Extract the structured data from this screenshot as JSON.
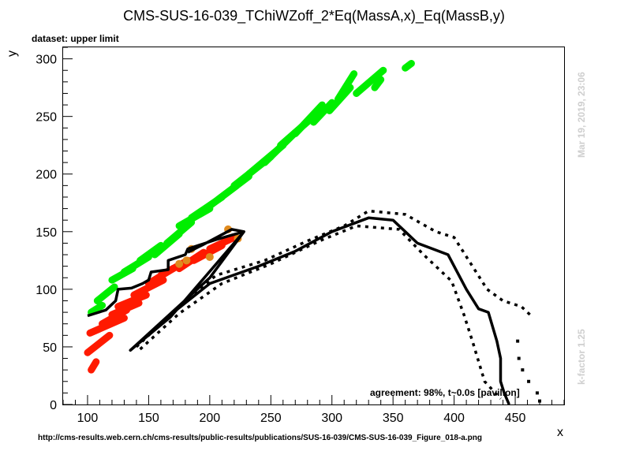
{
  "chart_data": {
    "type": "scatter",
    "title": "CMS-SUS-16-039_TChiWZoff_2*Eq(MassA,x)_Eq(MassB,y)",
    "subtitle": "dataset: upper limit",
    "xlabel": "x",
    "ylabel": "y",
    "xlim": [
      80,
      490
    ],
    "ylim": [
      0,
      310
    ],
    "xticks": [
      "100",
      "150",
      "200",
      "250",
      "300",
      "350",
      "400",
      "450"
    ],
    "yticks": [
      "0",
      "50",
      "100",
      "150",
      "200",
      "250",
      "300"
    ],
    "grid": false,
    "agreement_text": "agreement: 98%, t~0.0s [pavilion]",
    "date_text": "Mar 19, 2019, 23:06",
    "kfactor_text": "k-factor 1.25",
    "url_text": "http://cms-results.web.cern.ch/cms-results/public-results/publications/SUS-16-039/CMS-SUS-16-039_Figure_018-a.png",
    "colors": {
      "allowed": "#00ee00",
      "excluded": "#ff1a00",
      "boundary": "#e08a1e",
      "contour": "#000000"
    },
    "series": [
      {
        "color": "#00ee00",
        "bands": [
          [
            103,
            80,
            112,
            86
          ],
          [
            108,
            90,
            122,
            102
          ],
          [
            120,
            108,
            137,
            118
          ],
          [
            130,
            115,
            150,
            128
          ],
          [
            143,
            125,
            160,
            138
          ],
          [
            155,
            130,
            175,
            148
          ],
          [
            165,
            140,
            185,
            158
          ],
          [
            175,
            155,
            200,
            170
          ],
          [
            185,
            162,
            210,
            180
          ],
          [
            197,
            170,
            222,
            190
          ],
          [
            207,
            178,
            232,
            198
          ],
          [
            220,
            190,
            250,
            215
          ],
          [
            232,
            200,
            260,
            225
          ],
          [
            245,
            210,
            270,
            236
          ],
          [
            258,
            225,
            285,
            250
          ],
          [
            270,
            235,
            292,
            260
          ],
          [
            285,
            245,
            300,
            262
          ],
          [
            298,
            255,
            315,
            275
          ],
          [
            305,
            265,
            318,
            287
          ],
          [
            320,
            270,
            342,
            290
          ],
          [
            335,
            275,
            340,
            282
          ],
          [
            360,
            292,
            365,
            296
          ]
        ]
      },
      {
        "color": "#ff1a00",
        "bands": [
          [
            103,
            30,
            107,
            37
          ],
          [
            100,
            45,
            118,
            60
          ],
          [
            102,
            62,
            130,
            75
          ],
          [
            112,
            70,
            132,
            82
          ],
          [
            120,
            78,
            142,
            88
          ],
          [
            125,
            85,
            148,
            95
          ],
          [
            138,
            95,
            162,
            108
          ],
          [
            150,
            105,
            170,
            118
          ],
          [
            160,
            112,
            182,
            125
          ],
          [
            175,
            118,
            195,
            132
          ],
          [
            187,
            125,
            210,
            138
          ],
          [
            200,
            135,
            220,
            145
          ]
        ]
      },
      {
        "color": "#e08a1e",
        "points": [
          [
            215,
            152
          ],
          [
            200,
            128
          ],
          [
            181,
            125
          ],
          [
            175,
            122
          ],
          [
            185,
            135
          ],
          [
            223,
            144
          ]
        ]
      }
    ],
    "contour_main": [
      [
        100,
        77
      ],
      [
        115,
        82
      ],
      [
        123,
        90
      ],
      [
        125,
        100
      ],
      [
        136,
        101
      ],
      [
        145,
        105
      ],
      [
        150,
        108
      ],
      [
        152,
        115
      ],
      [
        166,
        117
      ],
      [
        166,
        125
      ],
      [
        180,
        130
      ],
      [
        182,
        135
      ],
      [
        205,
        143
      ],
      [
        218,
        147
      ],
      [
        228,
        150
      ],
      [
        168,
        76
      ],
      [
        135,
        47
      ],
      [
        200,
        110
      ],
      [
        228,
        150
      ],
      [
        218,
        152
      ],
      [
        195,
        139
      ],
      [
        182,
        132
      ]
    ],
    "contour_expected": [
      [
        135,
        47
      ],
      [
        168,
        78
      ],
      [
        200,
        105
      ],
      [
        240,
        120
      ],
      [
        270,
        133
      ],
      [
        300,
        150
      ],
      [
        330,
        162
      ],
      [
        350,
        160
      ],
      [
        370,
        140
      ],
      [
        395,
        130
      ],
      [
        410,
        100
      ],
      [
        420,
        83
      ],
      [
        428,
        80
      ],
      [
        435,
        55
      ],
      [
        438,
        40
      ],
      [
        438,
        20
      ],
      [
        441,
        10
      ],
      [
        445,
        0
      ]
    ],
    "contour_up": [
      [
        140,
        50
      ],
      [
        170,
        80
      ],
      [
        205,
        112
      ],
      [
        245,
        125
      ],
      [
        280,
        142
      ],
      [
        310,
        155
      ],
      [
        330,
        168
      ],
      [
        360,
        165
      ],
      [
        385,
        150
      ],
      [
        400,
        145
      ],
      [
        415,
        120
      ],
      [
        427,
        100
      ],
      [
        440,
        90
      ],
      [
        455,
        85
      ],
      [
        463,
        77
      ]
    ],
    "contour_down": [
      [
        143,
        48
      ],
      [
        175,
        79
      ],
      [
        210,
        105
      ],
      [
        250,
        122
      ],
      [
        290,
        142
      ],
      [
        320,
        155
      ],
      [
        355,
        152
      ],
      [
        375,
        130
      ],
      [
        390,
        115
      ],
      [
        398,
        107
      ],
      [
        408,
        78
      ],
      [
        415,
        55
      ],
      [
        425,
        20
      ],
      [
        438,
        5
      ]
    ],
    "contour_scatter_right": [
      [
        452,
        55
      ],
      [
        453,
        40
      ],
      [
        456,
        30
      ],
      [
        461,
        20
      ],
      [
        468,
        10
      ],
      [
        470,
        3
      ]
    ]
  }
}
